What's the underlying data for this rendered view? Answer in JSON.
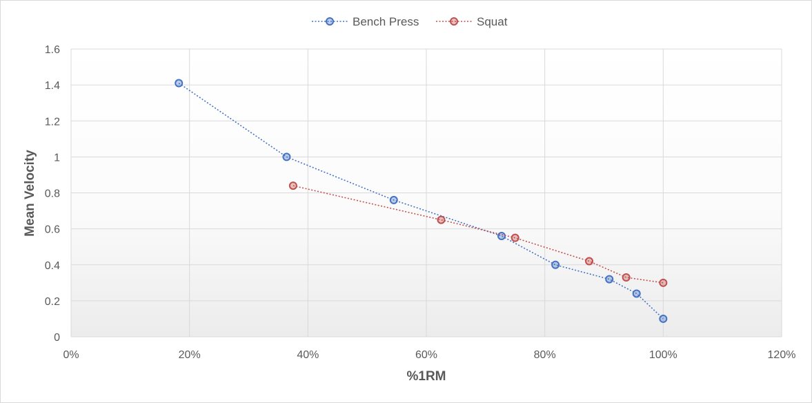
{
  "chart_data": {
    "type": "scatter",
    "title": "",
    "xlabel": "%1RM",
    "ylabel": "Mean Velocity",
    "xlim": [
      0,
      120
    ],
    "ylim": [
      0,
      1.6
    ],
    "x_ticks": [
      0,
      20,
      40,
      60,
      80,
      100,
      120
    ],
    "x_tick_labels": [
      "0%",
      "20%",
      "40%",
      "60%",
      "80%",
      "100%",
      "120%"
    ],
    "y_ticks": [
      0,
      0.2,
      0.4,
      0.6,
      0.8,
      1,
      1.2,
      1.4,
      1.6
    ],
    "y_tick_labels": [
      "0",
      "0.2",
      "0.4",
      "0.6",
      "0.8",
      "1",
      "1.2",
      "1.4",
      "1.6"
    ],
    "grid": true,
    "legend_position": "top-center",
    "line_style": "dotted",
    "series": [
      {
        "name": "Bench Press",
        "color": "#4472c4",
        "x": [
          18.2,
          36.4,
          54.5,
          72.7,
          81.8,
          90.9,
          95.5,
          100
        ],
        "y": [
          1.41,
          1.0,
          0.76,
          0.56,
          0.4,
          0.32,
          0.24,
          0.1
        ]
      },
      {
        "name": "Squat",
        "color": "#c0504d",
        "x": [
          37.5,
          62.5,
          75,
          87.5,
          93.75,
          100
        ],
        "y": [
          0.84,
          0.65,
          0.55,
          0.42,
          0.33,
          0.3
        ]
      }
    ]
  }
}
